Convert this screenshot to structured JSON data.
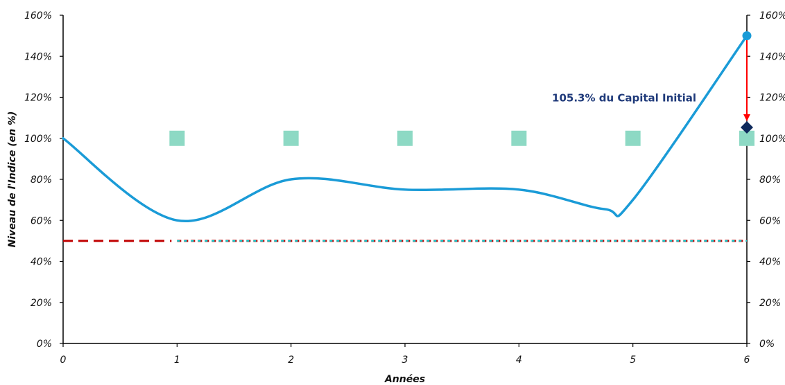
{
  "chart_data": {
    "type": "line",
    "xlabel": "Années",
    "ylabel": "Niveau de l'Indice (en %)",
    "x_ticks": [
      "0",
      "1",
      "2",
      "3",
      "4",
      "5",
      "6"
    ],
    "y_ticks_left": [
      "0%",
      "20%",
      "40%",
      "60%",
      "80%",
      "100%",
      "120%",
      "140%",
      "160%"
    ],
    "y_ticks_right": [
      "0%",
      "20%",
      "40%",
      "60%",
      "80%",
      "100%",
      "120%",
      "140%",
      "160%"
    ],
    "xlim": [
      0,
      6
    ],
    "ylim": [
      0,
      160
    ],
    "grid": false,
    "index_curve": {
      "color": "#1a9bd7",
      "points": [
        {
          "x": 0,
          "y": 100
        },
        {
          "x": 1,
          "y": 60
        },
        {
          "x": 2,
          "y": 80
        },
        {
          "x": 3,
          "y": 75
        },
        {
          "x": 4,
          "y": 75
        },
        {
          "x": 4.75,
          "y": 65.5
        },
        {
          "x": 5,
          "y": 70
        },
        {
          "x": 6,
          "y": 150
        }
      ]
    },
    "observation_markers": {
      "color": "#8dd9c4",
      "x": [
        1,
        2,
        3,
        4,
        5,
        6
      ],
      "y": 100
    },
    "barrier_dashed": {
      "color": "#c00000",
      "y": 50,
      "x_start": 0,
      "x_end": 1
    },
    "barrier_dotted": {
      "color": "#00d4d8",
      "y": 50,
      "x_start": 1,
      "x_end": 6
    },
    "final_point": {
      "x": 6,
      "y": 150,
      "color": "#1a9bd7"
    },
    "redemption_point": {
      "x": 6,
      "y": 105.3,
      "color": "#0f2a5c"
    },
    "arrow": {
      "color": "#ff0000",
      "x": 6,
      "y_from": 150,
      "y_to": 105.3
    },
    "annotation": {
      "text": "105.3% du Capital Initial",
      "color": "#1f3a7a"
    }
  }
}
